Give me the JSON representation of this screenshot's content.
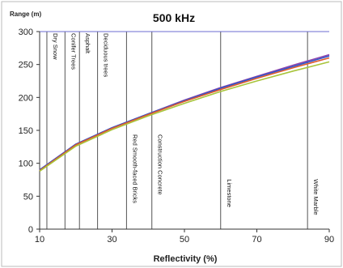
{
  "chart_data": {
    "type": "line",
    "title": "500 kHz",
    "xlabel": "Reflectivity (%)",
    "ylabel": "Range (m)",
    "xlim": [
      10,
      90
    ],
    "ylim": [
      0,
      300
    ],
    "x_ticks": [
      10,
      30,
      50,
      70,
      90
    ],
    "y_ticks": [
      0,
      50,
      100,
      150,
      200,
      250,
      300
    ],
    "grid": "horizontal-top-only",
    "series": [
      {
        "color": "#8e44ad",
        "x": [
          10,
          20,
          30,
          40,
          50,
          60,
          70,
          80,
          90
        ],
        "y": [
          90,
          129,
          154,
          175,
          196,
          215,
          232,
          249,
          265
        ]
      },
      {
        "color": "#2f55c8",
        "x": [
          10,
          20,
          30,
          40,
          50,
          60,
          70,
          80,
          90
        ],
        "y": [
          90,
          129,
          154,
          175,
          195,
          214,
          231,
          247,
          263
        ]
      },
      {
        "color": "#e05a2b",
        "x": [
          10,
          20,
          30,
          40,
          50,
          60,
          70,
          80,
          90
        ],
        "y": [
          89,
          128,
          153,
          174,
          194,
          212,
          229,
          245,
          260
        ]
      },
      {
        "color": "#a8c43a",
        "x": [
          10,
          20,
          30,
          40,
          50,
          60,
          70,
          80,
          90
        ],
        "y": [
          88,
          126,
          151,
          172,
          191,
          209,
          225,
          240,
          254
        ]
      }
    ],
    "annotations": [
      {
        "x": 12,
        "label": "Dry Snow"
      },
      {
        "x": 17,
        "label": "Conifer Trees"
      },
      {
        "x": 21,
        "label": "Asphalt"
      },
      {
        "x": 26,
        "label": "Deciduous trees"
      },
      {
        "x": 34,
        "label": "Red Smooth-faced Bricks"
      },
      {
        "x": 41,
        "label": "Construction Concrete"
      },
      {
        "x": 60,
        "label": "Limestone"
      },
      {
        "x": 84,
        "label": "White Marble"
      }
    ]
  }
}
